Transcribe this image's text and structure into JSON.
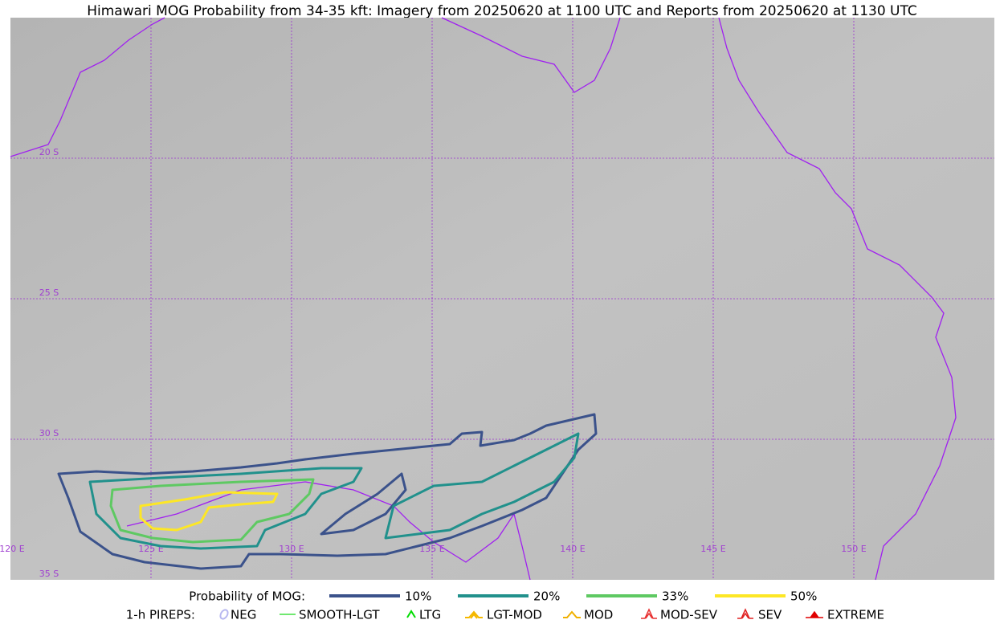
{
  "title": "Himawari MOG Probability from 34-35 kft: Imagery from 20250620 at 1100 UTC and Reports from 20250620 at 1130 UTC",
  "latitude_labels": [
    "20 S",
    "25 S",
    "30 S",
    "35 S"
  ],
  "longitude_labels": [
    "120 E",
    "125 E",
    "130 E",
    "135 E",
    "140 E",
    "145 E",
    "150 E"
  ],
  "mog_legend": {
    "title": "Probability of MOG:",
    "items": [
      {
        "label": "10%",
        "color": "#3b528b"
      },
      {
        "label": "20%",
        "color": "#21918c"
      },
      {
        "label": "33%",
        "color": "#5ec962"
      },
      {
        "label": "50%",
        "color": "#fde725"
      }
    ]
  },
  "pirep_legend": {
    "title": "1-h PIREPS:",
    "items": [
      {
        "label": "NEG",
        "color": "#b8b8f0"
      },
      {
        "label": "SMOOTH-LGT",
        "color": "#40e040"
      },
      {
        "label": "LTG",
        "color": "#00dd00"
      },
      {
        "label": "LGT-MOD",
        "color": "#f5b800"
      },
      {
        "label": "MOD",
        "color": "#f0b000"
      },
      {
        "label": "MOD-SEV",
        "color": "#e83030"
      },
      {
        "label": "SEV",
        "color": "#e02020"
      },
      {
        "label": "EXTREME",
        "color": "#e00000"
      }
    ]
  }
}
